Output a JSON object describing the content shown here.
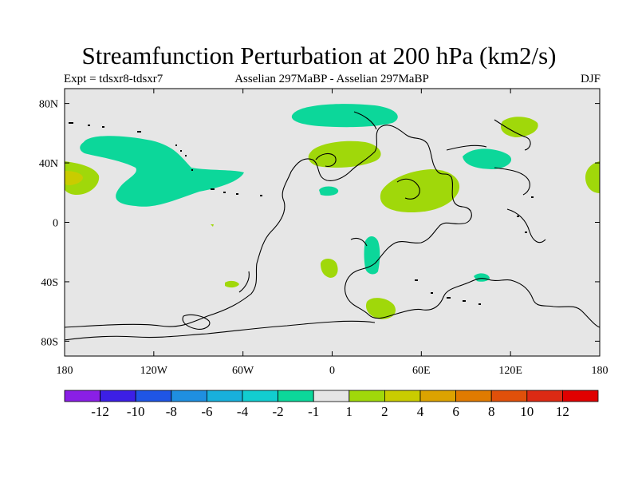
{
  "title": "Streamfunction Perturbation at 200 hPa (km2/s)",
  "subtitle_left": "Expt = tdsxr8-tdsxr7",
  "subtitle_center": "Asselian 297MaBP - Asselian 297MaBP",
  "subtitle_right": "DJF",
  "map": {
    "background_color": "#e6e6e6",
    "lat_ticks": [
      "80N",
      "40N",
      "0",
      "40S",
      "80S"
    ],
    "lon_ticks": [
      "180",
      "120W",
      "60W",
      "0",
      "60E",
      "120E",
      "180"
    ]
  },
  "colorbar": {
    "labels": [
      "-12",
      "-10",
      "-8",
      "-6",
      "-4",
      "-2",
      "-1",
      "1",
      "2",
      "4",
      "6",
      "8",
      "10",
      "12"
    ],
    "colors": [
      "#8a1fe6",
      "#3c1fe6",
      "#1f55e6",
      "#1f8fe0",
      "#18b0dc",
      "#12cdd0",
      "#0cd79a",
      "#e6e6e6",
      "#a0d80a",
      "#c9cc00",
      "#dca300",
      "#e07b00",
      "#e0500a",
      "#dc2a14",
      "#e00000"
    ]
  }
}
